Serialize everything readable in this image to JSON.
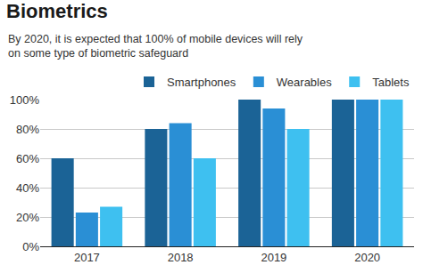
{
  "chart_data": {
    "type": "bar",
    "title": "Biometrics",
    "subtitle": "By 2020, it is expected that 100% of mobile devices will rely\non some type of biometric safeguard",
    "categories": [
      "2017",
      "2018",
      "2019",
      "2020"
    ],
    "series": [
      {
        "name": "Smartphones",
        "color": "#1b6396",
        "values": [
          60,
          80,
          100,
          100
        ]
      },
      {
        "name": "Wearables",
        "color": "#2a8fd5",
        "values": [
          23,
          84,
          94,
          100
        ]
      },
      {
        "name": "Tablets",
        "color": "#3ec0f0",
        "values": [
          27,
          60,
          80,
          100
        ]
      }
    ],
    "ylim": [
      0,
      100
    ],
    "yticks": [
      {
        "value": 0,
        "label": "0%"
      },
      {
        "value": 20,
        "label": "20%"
      },
      {
        "value": 40,
        "label": "40%"
      },
      {
        "value": 60,
        "label": "60%"
      },
      {
        "value": 80,
        "label": "80%"
      },
      {
        "value": 100,
        "label": "100%"
      }
    ],
    "grid": true,
    "legend": "top"
  }
}
